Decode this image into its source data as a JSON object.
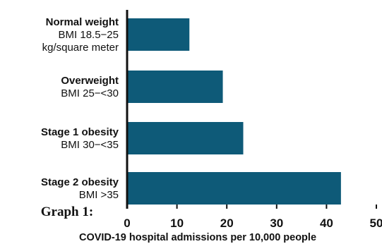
{
  "chart_data": {
    "type": "bar",
    "orientation": "horizontal",
    "categories": [
      {
        "title": "Normal weight",
        "sub": [
          "BMI 18.5−25",
          "kg/square meter"
        ]
      },
      {
        "title": "Overweight",
        "sub": [
          "BMI 25−<30"
        ]
      },
      {
        "title": "Stage 1 obesity",
        "sub": [
          "BMI 30−<35"
        ]
      },
      {
        "title": "Stage 2 obesity",
        "sub": [
          "BMI >35"
        ]
      }
    ],
    "values": [
      12.5,
      19.2,
      23.3,
      42.9
    ],
    "xlim": [
      0,
      50
    ],
    "xticks": [
      0,
      10,
      20,
      30,
      40,
      50
    ],
    "xlabel": "COVID-19 hospital admissions per 10,000 people",
    "graph_label": "Graph 1:",
    "bar_color": "#0e5a78",
    "grid": false
  }
}
